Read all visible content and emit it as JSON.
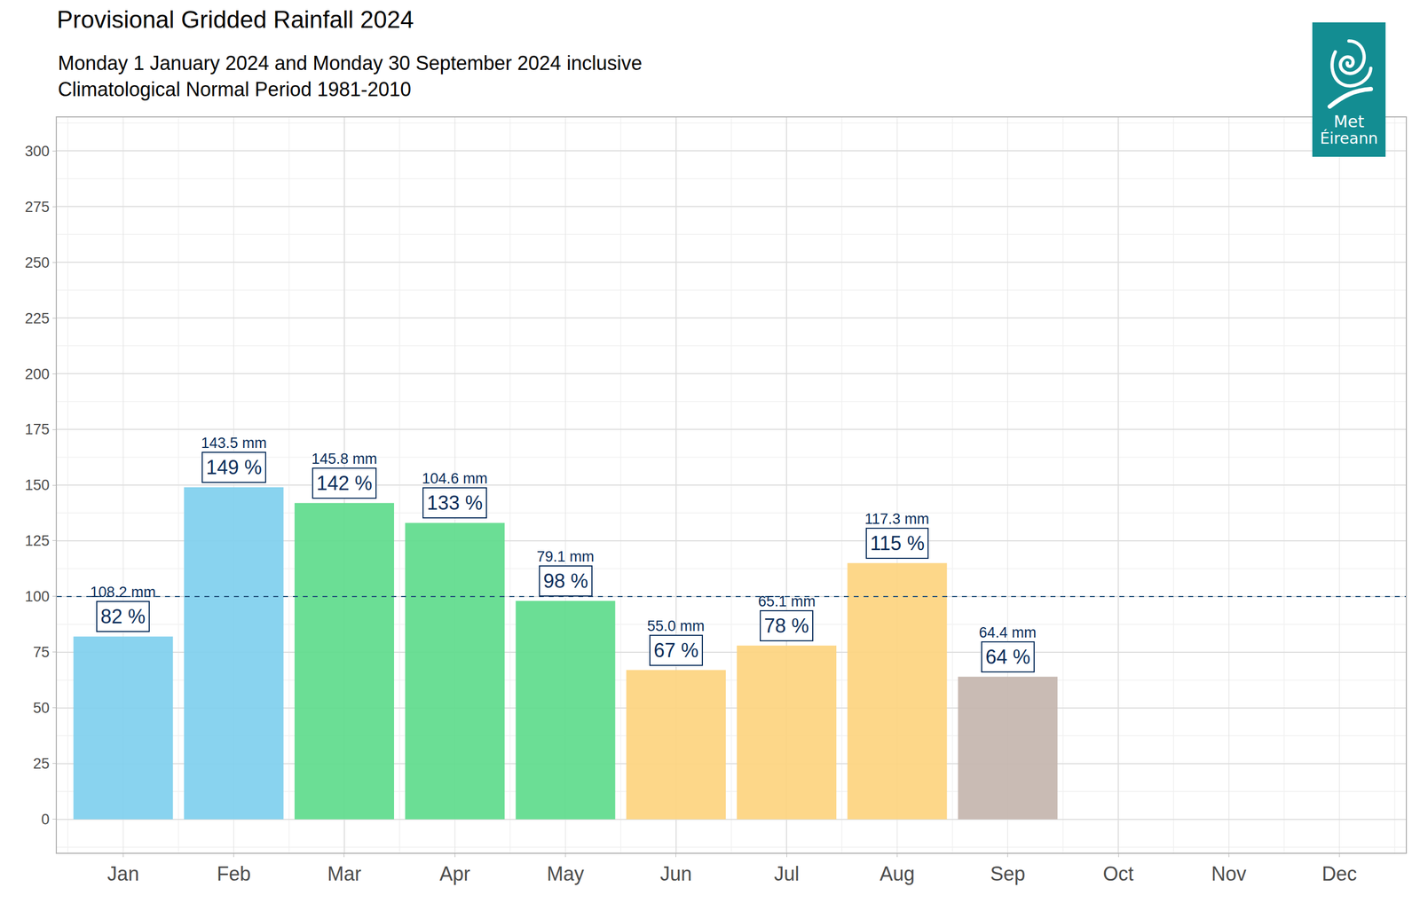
{
  "chart_data": {
    "type": "bar",
    "title": "Provisional Gridded Rainfall 2024",
    "subtitle": [
      "Monday 1 January 2024 and Monday 30 September 2024 inclusive",
      "Climatological Normal Period 1981-2010"
    ],
    "logo_text": [
      "Met",
      "Éireann"
    ],
    "categories": [
      "Jan",
      "Feb",
      "Mar",
      "Apr",
      "May",
      "Jun",
      "Jul",
      "Aug",
      "Sep",
      "Oct",
      "Nov",
      "Dec"
    ],
    "values": [
      82,
      149,
      142,
      133,
      98,
      67,
      78,
      115,
      64,
      null,
      null,
      null
    ],
    "value_labels": [
      "82 %",
      "149 %",
      "142 %",
      "133 %",
      "98 %",
      "67 %",
      "78 %",
      "115 %",
      "64 %",
      null,
      null,
      null
    ],
    "rainfall_labels": [
      "108.2 mm",
      "143.5 mm",
      "145.8 mm",
      "104.6 mm",
      "79.1 mm",
      "55.0 mm",
      "65.1 mm",
      "117.3 mm",
      "64.4 mm",
      null,
      null,
      null
    ],
    "colors": [
      "#7fcfee",
      "#7fcfee",
      "#5edb8c",
      "#5edb8c",
      "#5edb8c",
      "#fdd47f",
      "#fdd47f",
      "#fdd47f",
      "#c4b5ae",
      null,
      null,
      null
    ],
    "reference_line": 100,
    "ylim": [
      -15,
      315
    ],
    "yticks": [
      0,
      25,
      50,
      75,
      100,
      125,
      150,
      175,
      200,
      225,
      250,
      275,
      300
    ],
    "grid": true,
    "data_labels": true
  }
}
